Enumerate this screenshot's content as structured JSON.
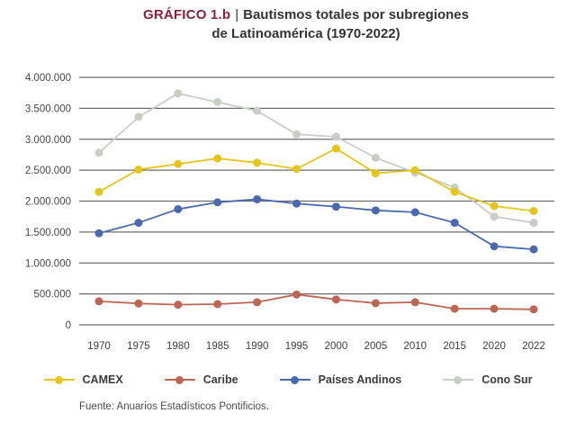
{
  "title": {
    "tag": "GRÁFICO 1.b",
    "separator": "|",
    "line1": "Bautismos totales por subregiones",
    "line2": "de Latinoamérica (1970-2022)"
  },
  "footer": {
    "source": "Fuente: Anuarios Estadísticos Pontificios."
  },
  "colors": {
    "title_tag": "#8c1f3e",
    "text": "#333333",
    "gridline": "#6b6b6b"
  },
  "chart_data": {
    "type": "line",
    "title": "Bautismos totales por subregiones de Latinoamérica (1970-2022)",
    "xlabel": "",
    "ylabel": "",
    "categories": [
      "1970",
      "1975",
      "1980",
      "1985",
      "1990",
      "1995",
      "2000",
      "2005",
      "2010",
      "2015",
      "2020",
      "2022"
    ],
    "series": [
      {
        "name": "CAMEX",
        "color": "#e5c51d",
        "values": [
          2150000,
          2510000,
          2600000,
          2690000,
          2620000,
          2520000,
          2850000,
          2450000,
          2500000,
          2150000,
          1920000,
          1840000
        ]
      },
      {
        "name": "Caribe",
        "color": "#bd6553",
        "values": [
          380000,
          345000,
          325000,
          335000,
          365000,
          490000,
          410000,
          350000,
          365000,
          260000,
          260000,
          250000
        ]
      },
      {
        "name": "Países Andinos",
        "color": "#4a69af",
        "values": [
          1480000,
          1650000,
          1870000,
          1980000,
          2030000,
          1960000,
          1910000,
          1850000,
          1820000,
          1650000,
          1270000,
          1220000
        ]
      },
      {
        "name": "Cono Sur",
        "color": "#c7cec4",
        "values": [
          2780000,
          3360000,
          3740000,
          3600000,
          3460000,
          3080000,
          3040000,
          2700000,
          2460000,
          2220000,
          1750000,
          1650000
        ]
      }
    ],
    "draw_order": [
      "Cono Sur",
      "Países Andinos",
      "Caribe",
      "CAMEX"
    ],
    "ylim": [
      0,
      4000000
    ],
    "y_tick_step": 500000,
    "y_tick_labels": [
      "0",
      "500.000",
      "1.000.000",
      "1.500.000",
      "2.000.000",
      "2.500.000",
      "3.000.000",
      "3.500.000",
      "4.000.000"
    ],
    "grid": "horizontal",
    "legend_position": "bottom"
  }
}
